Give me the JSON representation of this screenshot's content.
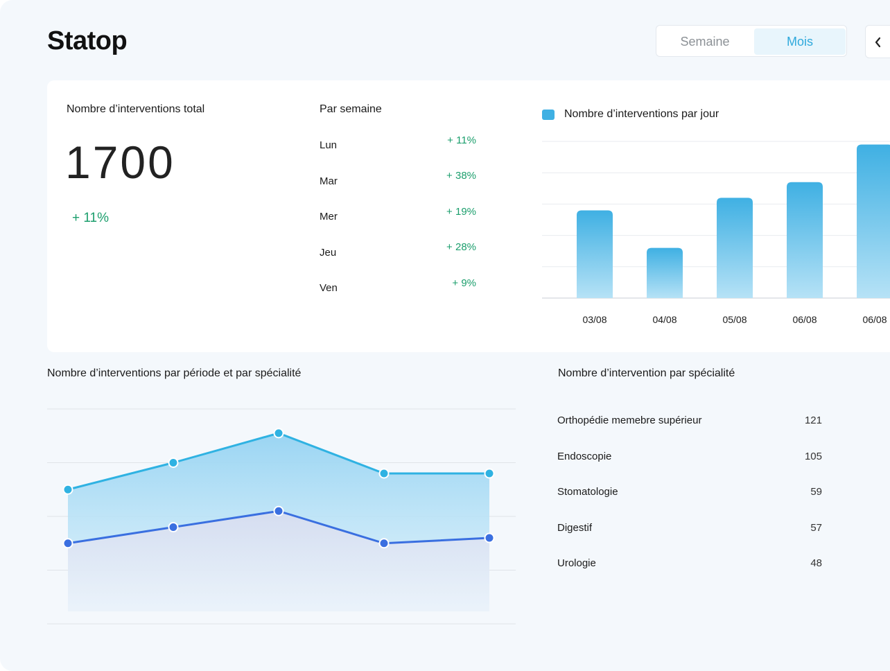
{
  "app": {
    "title": "Statop"
  },
  "period_toggle": {
    "week": "Semaine",
    "month": "Mois",
    "selected": "Mois"
  },
  "summary": {
    "label": "Nombre d’interventions total",
    "total": "1700",
    "change": "+ 11%"
  },
  "weekly": {
    "label": "Par semaine",
    "days": [
      {
        "day": "Lun",
        "change": "+ 11%"
      },
      {
        "day": "Mar",
        "change": "+ 38%"
      },
      {
        "day": "Mer",
        "change": "+ 19%"
      },
      {
        "day": "Jeu",
        "change": "+ 28%"
      },
      {
        "day": "Ven",
        "change": "+ 9%"
      }
    ]
  },
  "colors": {
    "accent": "#2fa9dc",
    "bar": "#3fb0e3",
    "positive": "#1b9e6c",
    "line_primary": "#2fb2e2",
    "line_secondary": "#3a6fe0"
  },
  "chart_data": [
    {
      "type": "bar",
      "legend": "Nombre d’interventions par jour",
      "legend_position": "top-left",
      "categories": [
        "03/08",
        "04/08",
        "05/08",
        "06/08",
        "06/08"
      ],
      "values": [
        28,
        16,
        32,
        37,
        49
      ],
      "ylim": [
        0,
        50
      ],
      "grid": true
    },
    {
      "type": "area",
      "title": "Nombre d’interventions par période et par spécialité",
      "x": [
        1,
        2,
        3,
        4,
        5
      ],
      "series": [
        {
          "values": [
            2.5,
            3.0,
            3.55,
            2.8,
            2.8
          ]
        },
        {
          "values": [
            1.5,
            1.8,
            2.1,
            1.5,
            1.6
          ]
        }
      ],
      "ylim": [
        0,
        4
      ],
      "grid": true
    }
  ],
  "specialties": {
    "title": "Nombre d’intervention par spécialité",
    "items": [
      {
        "name": "Orthopédie memebre supérieur",
        "value": "121"
      },
      {
        "name": "Endoscopie",
        "value": "105"
      },
      {
        "name": "Stomatologie",
        "value": "59"
      },
      {
        "name": "Digestif",
        "value": "57"
      },
      {
        "name": "Urologie",
        "value": "48"
      }
    ]
  }
}
